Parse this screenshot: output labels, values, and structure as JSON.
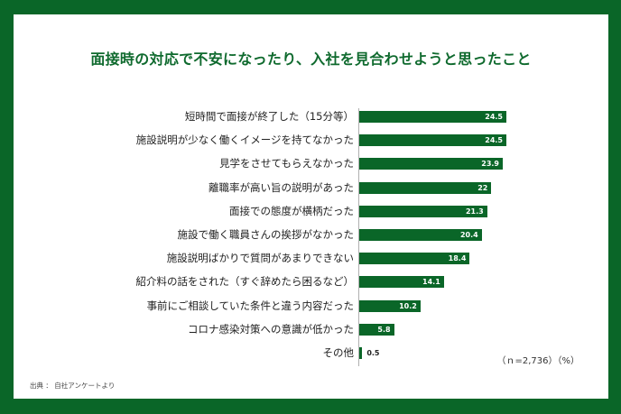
{
  "title": "面接時の対応で不安になったり、入社を見合わせようと思ったこと",
  "note": "（ｎ=2,736）（%）",
  "source": "出典 ： 自社アンケートより",
  "colors": {
    "frame": "#0a6628",
    "bar": "#0a6628",
    "title": "#0f6a2e"
  },
  "chart_data": {
    "type": "bar",
    "orientation": "horizontal",
    "title": "面接時の対応で不安になったり、入社を見合わせようと思ったこと",
    "xlabel": "",
    "ylabel": "",
    "unit": "%",
    "sample_size": "n=2,736",
    "xlim": [
      0,
      25
    ],
    "grid": false,
    "legend": null,
    "categories": [
      "短時間で面接が終了した（15分等）",
      "施設説明が少なく働くイメージを持てなかった",
      "見学をさせてもらえなかった",
      "離職率が高い旨の説明があった",
      "面接での態度が横柄だった",
      "施設で働く職員さんの挨拶がなかった",
      "施設説明ばかりで質問があまりできない",
      "紹介料の話をされた（すぐ辞めたら困るなど）",
      "事前にご相談していた条件と違う内容だった",
      "コロナ感染対策への意識が低かった",
      "その他"
    ],
    "values": [
      24.5,
      24.5,
      23.9,
      22,
      21.3,
      20.4,
      18.4,
      14.1,
      10.2,
      5.8,
      0.5
    ],
    "value_labels": [
      "24.5",
      "24.5",
      "23.9",
      "22",
      "21.3",
      "20.4",
      "18.4",
      "14.1",
      "10.2",
      "5.8",
      "0.5"
    ]
  }
}
